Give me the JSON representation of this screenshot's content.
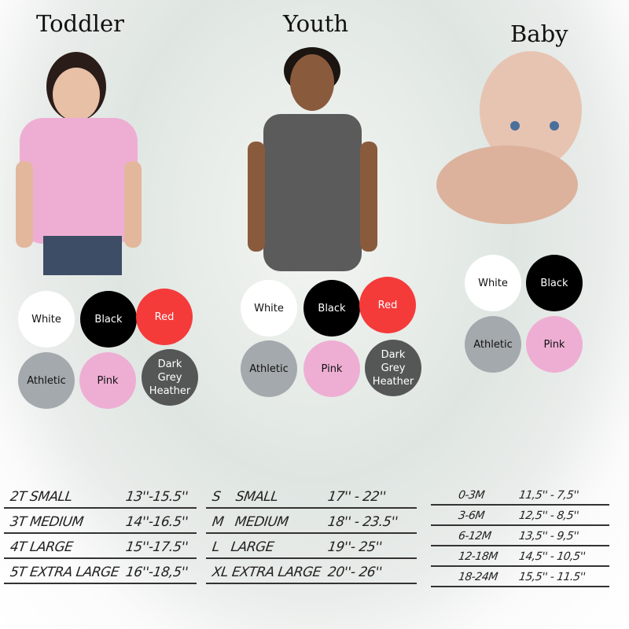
{
  "sections": [
    {
      "title": "Toddler",
      "shirt_color": "#eeaed3",
      "swatches": [
        {
          "label": "White",
          "color": "#ffffff",
          "text": "#111111"
        },
        {
          "label": "Black",
          "color": "#000000",
          "text": "#ffffff"
        },
        {
          "label": "Red",
          "color": "#f53a3a",
          "text": "#ffffff"
        },
        {
          "label": "Athletic",
          "color": "#a4a9ad",
          "text": "#111111"
        },
        {
          "label": "Pink",
          "color": "#eeaed3",
          "text": "#111111"
        },
        {
          "label": "Dark Grey Heather",
          "color": "#555656",
          "text": "#ffffff"
        }
      ],
      "sizes": [
        {
          "size": "2T SMALL",
          "range": "13''-15.5''"
        },
        {
          "size": "3T MEDIUM",
          "range": "14''-16.5''"
        },
        {
          "size": "4T LARGE",
          "range": "15''-17.5''"
        },
        {
          "size": "5T EXTRA LARGE",
          "range": "16''-18,5''"
        }
      ]
    },
    {
      "title": "Youth",
      "shirt_color": "#5b5b5b",
      "swatches": [
        {
          "label": "White",
          "color": "#ffffff",
          "text": "#111111"
        },
        {
          "label": "Black",
          "color": "#000000",
          "text": "#ffffff"
        },
        {
          "label": "Red",
          "color": "#f53a3a",
          "text": "#ffffff"
        },
        {
          "label": "Athletic",
          "color": "#a4a9ad",
          "text": "#111111"
        },
        {
          "label": "Pink",
          "color": "#eeaed3",
          "text": "#111111"
        },
        {
          "label": "Dark Grey Heather",
          "color": "#555656",
          "text": "#ffffff"
        }
      ],
      "sizes": [
        {
          "size": "S    SMALL",
          "range": "17'' - 22''"
        },
        {
          "size": "M   MEDIUM",
          "range": "18'' - 23.5''"
        },
        {
          "size": "L   LARGE",
          "range": "19''- 25''"
        },
        {
          "size": "XL EXTRA LARGE",
          "range": "20''- 26''"
        }
      ]
    },
    {
      "title": "Baby",
      "swatches": [
        {
          "label": "White",
          "color": "#ffffff",
          "text": "#111111"
        },
        {
          "label": "Black",
          "color": "#000000",
          "text": "#ffffff"
        },
        {
          "label": "Athletic",
          "color": "#a4a9ad",
          "text": "#111111"
        },
        {
          "label": "Pink",
          "color": "#eeaed3",
          "text": "#111111"
        }
      ],
      "sizes": [
        {
          "size": "0-3M",
          "range": "11,5'' - 7,5''"
        },
        {
          "size": "3-6M",
          "range": "12,5'' - 8,5''"
        },
        {
          "size": "6-12M",
          "range": "13,5'' - 9,5''"
        },
        {
          "size": "12-18M",
          "range": "14,5'' - 10,5''"
        },
        {
          "size": "18-24M",
          "range": "15,5'' - 11.5''"
        }
      ]
    }
  ]
}
